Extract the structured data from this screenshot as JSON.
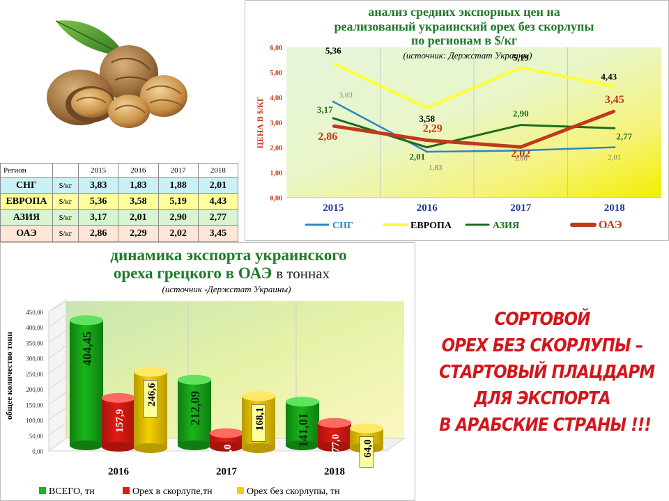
{
  "table": {
    "headers": [
      "Регион",
      "",
      "2015",
      "2016",
      "2017",
      "2018"
    ],
    "rows": [
      {
        "region": "СНГ",
        "unit": "$/кг",
        "values": [
          "3,83",
          "1,83",
          "1,88",
          "2,01"
        ],
        "color": "#c9f2f7"
      },
      {
        "region": "ЕВРОПА",
        "unit": "$/кг",
        "values": [
          "5,36",
          "3,58",
          "5,19",
          "4,43"
        ],
        "color": "#ffff9c"
      },
      {
        "region": "АЗИЯ",
        "unit": "$/кг",
        "values": [
          "3,17",
          "2,01",
          "2,90",
          "2,77"
        ],
        "color": "#d6f5d0"
      },
      {
        "region": "ОАЭ",
        "unit": "$/кг",
        "values": [
          "2,86",
          "2,29",
          "2,02",
          "3,45"
        ],
        "color": "#ffe6d6"
      }
    ]
  },
  "slogan": [
    "СОРТОВОЙ",
    "ОРЕХ БЕЗ СКОРЛУПЫ –",
    "СТАРТОВЫЙ ПЛАЦДАРМ",
    "ДЛЯ ЭКСПОРТА",
    "В АРАБСКИЕ СТРАНЫ !!!"
  ],
  "chart_data": [
    {
      "type": "line",
      "title_lines": [
        "анализ средних экспорных цен на",
        "реализованый украинский орех без скорлупы",
        "по регионам в $/кг"
      ],
      "subtitle": "(источник: Держстат Украины)",
      "ylabel": "ЦЕНА В $/КГ",
      "ylim": [
        0,
        6
      ],
      "yticks": [
        "0,00",
        "1,00",
        "2,00",
        "3,00",
        "4,00",
        "5,00",
        "6,00"
      ],
      "categories": [
        "2015",
        "2016",
        "2017",
        "2018"
      ],
      "legend_position": "bottom",
      "series": [
        {
          "name": "СНГ",
          "values": [
            3.83,
            1.83,
            1.88,
            2.01
          ],
          "labels": [
            "3,83",
            "1,83",
            "1,88",
            "2,01"
          ],
          "color": "#2e86c1"
        },
        {
          "name": "ЕВРОПА",
          "values": [
            5.36,
            3.58,
            5.19,
            4.43
          ],
          "labels": [
            "5,36",
            "3,58",
            "5,19",
            "4,43"
          ],
          "color": "#ffff33"
        },
        {
          "name": "АЗИЯ",
          "values": [
            3.17,
            2.01,
            2.9,
            2.77
          ],
          "labels": [
            "3,17",
            "2,01",
            "2,90",
            "2,77"
          ],
          "color": "#1e6b1e"
        },
        {
          "name": "ОАЭ",
          "values": [
            2.86,
            2.29,
            2.02,
            3.45
          ],
          "labels": [
            "2,86",
            "2,29",
            "2,02",
            "3,45"
          ],
          "color": "#c0391b"
        }
      ]
    },
    {
      "type": "bar",
      "title_lines": [
        "динамика экспорта украинского",
        "ореха грецкого в ОАЭ"
      ],
      "title_suffix": "в тоннах",
      "subtitle": "(источник -Держстат Украины)",
      "ylabel": "общее количество тонн",
      "ylim": [
        0,
        450
      ],
      "yticks": [
        "0,00",
        "50,00",
        "100,00",
        "150,00",
        "200,00",
        "250,00",
        "300,00",
        "350,00",
        "400,00",
        "450,00"
      ],
      "categories": [
        "2016",
        "2017",
        "2018"
      ],
      "legend_position": "bottom",
      "series": [
        {
          "name": "ВСЕГО, тн",
          "values": [
            404.45,
            212.09,
            141.01
          ],
          "labels": [
            "404,45",
            "212,09",
            "141,01"
          ],
          "color": "#19b51a"
        },
        {
          "name": "Орех в скорлупе,тн",
          "values": [
            157.9,
            44.0,
            77.0
          ],
          "labels": [
            "157,9",
            "44,0",
            "77,0"
          ],
          "color": "#e31b12"
        },
        {
          "name": "Орех без скорлупы, тн",
          "values": [
            246.6,
            168.1,
            64.0
          ],
          "labels": [
            "246,6",
            "168,1",
            "64,0"
          ],
          "color": "#f5d000"
        }
      ]
    }
  ]
}
